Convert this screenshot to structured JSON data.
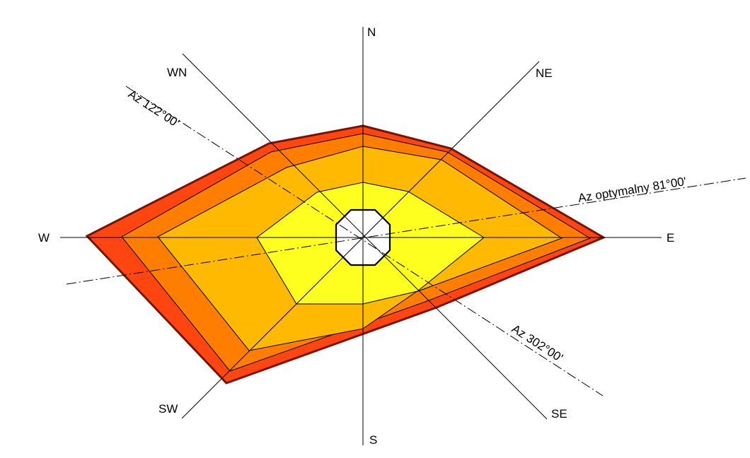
{
  "directions": {
    "n": "N",
    "ne": "NE",
    "e": "E",
    "se": "SE",
    "s": "S",
    "sw": "SW",
    "w": "W",
    "wn": "WN"
  },
  "azimuth_lines": {
    "az_122": "Az 122°00'",
    "az_302": "Az 302°00'",
    "az_opt": "Az optymalny 81°00'"
  },
  "colors": {
    "band_outer": "#ff4510",
    "band_2": "#ff7e00",
    "band_3": "#ffb900",
    "band_inner": "#ffff1f",
    "center": "#ffffff",
    "outline": "#7a1200",
    "axis": "#000000"
  }
}
